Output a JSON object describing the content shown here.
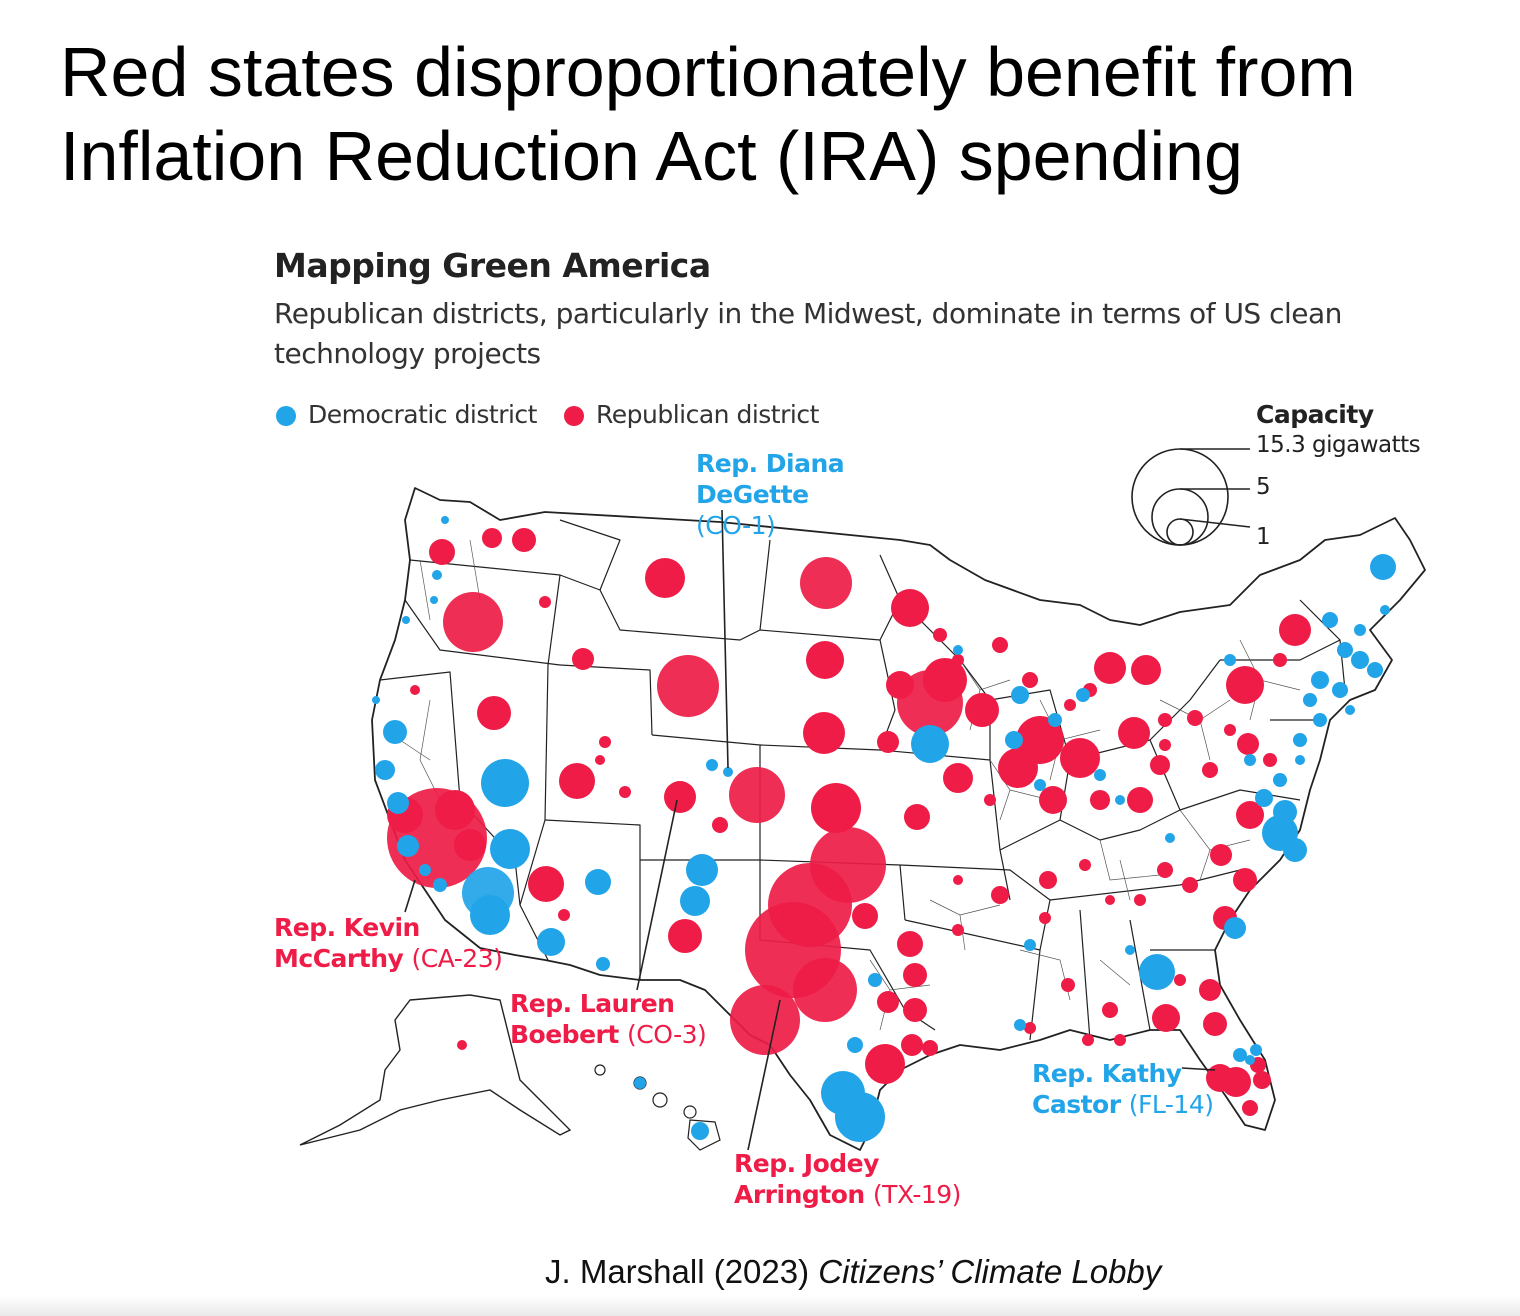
{
  "slide": {
    "title": "Red states disproportionately benefit from Inflation Reduction Act (IRA) spending",
    "credit_author": "J. Marshall (2023)",
    "credit_source": "Citizens’ Climate Lobby"
  },
  "figure": {
    "title": "Mapping Green America",
    "subtitle": "Republican districts, particularly in the Midwest, dominate in terms of US clean technology projects"
  },
  "legend": {
    "democratic": "Democratic district",
    "republican": "Republican district"
  },
  "capacity_legend": {
    "title": "Capacity",
    "large": "15.3 gigawatts",
    "medium": "5",
    "small": "1",
    "values_gw": [
      15.3,
      5,
      1
    ]
  },
  "annotations": {
    "degette": {
      "name": "Rep. Diana DeGette",
      "district": "(CO-1)",
      "party": "D"
    },
    "mccarthy": {
      "name": "Rep. Kevin McCarthy",
      "district": "(CA-23)",
      "party": "R"
    },
    "boebert": {
      "name": "Rep. Lauren Boebert",
      "district": "(CO-3)",
      "party": "R"
    },
    "arrington": {
      "name": "Rep. Jodey Arrington",
      "district": "(TX-19)",
      "party": "R"
    },
    "castor": {
      "name": "Rep. Kathy Castor",
      "district": "(FL-14)",
      "party": "D"
    }
  },
  "colors": {
    "democratic": "#22a4e8",
    "republican": "#ee1c47",
    "borders": "#222222"
  }
}
